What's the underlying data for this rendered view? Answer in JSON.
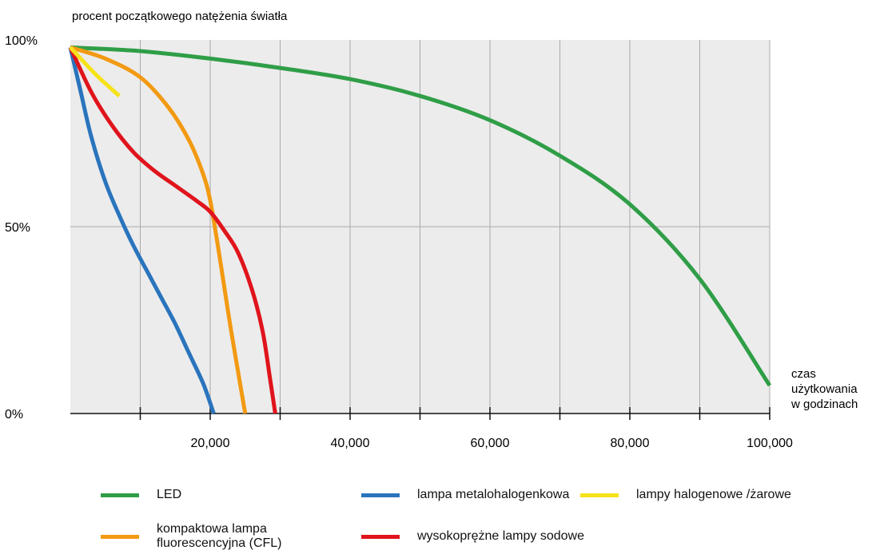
{
  "chart_data": {
    "type": "line",
    "title": "procent początkowego natężenia światła",
    "xlabel": [
      "czas",
      "użytkowania",
      "w godzinach"
    ],
    "ylabel": "",
    "xlim": [
      0,
      100000
    ],
    "ylim": [
      0,
      100
    ],
    "x_ticks": [
      20000,
      40000,
      60000,
      80000,
      100000
    ],
    "x_tick_labels": [
      "20,000",
      "40,000",
      "60,000",
      "80,000",
      "100,000"
    ],
    "x_grid": [
      10000,
      20000,
      30000,
      40000,
      50000,
      60000,
      70000,
      80000,
      90000,
      100000
    ],
    "y_ticks": [
      0,
      50,
      100
    ],
    "y_tick_labels": [
      "0%",
      "50%",
      "100%"
    ],
    "grid": true,
    "legend_position": "bottom",
    "series": [
      {
        "name": "LED",
        "color": "#2f9e47",
        "points": [
          [
            0,
            98
          ],
          [
            10000,
            97
          ],
          [
            20000,
            95
          ],
          [
            30000,
            92.5
          ],
          [
            40000,
            89.5
          ],
          [
            50000,
            85
          ],
          [
            60000,
            78.5
          ],
          [
            70000,
            69
          ],
          [
            80000,
            56
          ],
          [
            90000,
            36
          ],
          [
            100000,
            7.5
          ]
        ]
      },
      {
        "name": "kompaktowa lampa fluorescencyjna (CFL)",
        "color": "#f29a12",
        "points": [
          [
            0,
            98
          ],
          [
            5000,
            95
          ],
          [
            10000,
            90
          ],
          [
            14000,
            82
          ],
          [
            17000,
            73
          ],
          [
            19000,
            64
          ],
          [
            20000,
            57
          ],
          [
            21000,
            46
          ],
          [
            22000,
            34
          ],
          [
            23000,
            22
          ],
          [
            24000,
            11
          ],
          [
            25000,
            0
          ]
        ]
      },
      {
        "name": "lampa metalohalogenkowa",
        "color": "#2a74bd",
        "points": [
          [
            0,
            98
          ],
          [
            1500,
            86
          ],
          [
            3000,
            74
          ],
          [
            5000,
            62
          ],
          [
            7000,
            53
          ],
          [
            9000,
            45
          ],
          [
            11000,
            38
          ],
          [
            13000,
            31
          ],
          [
            15000,
            24
          ],
          [
            17000,
            16
          ],
          [
            19000,
            8
          ],
          [
            20500,
            0
          ]
        ]
      },
      {
        "name": "wysokoprężne lampy sodowe",
        "color": "#e0141c",
        "points": [
          [
            0,
            98
          ],
          [
            3000,
            86
          ],
          [
            6000,
            77
          ],
          [
            9000,
            70
          ],
          [
            12000,
            65
          ],
          [
            15000,
            61
          ],
          [
            18000,
            57
          ],
          [
            20000,
            54
          ],
          [
            22000,
            49
          ],
          [
            24000,
            43
          ],
          [
            26000,
            33
          ],
          [
            27500,
            22
          ],
          [
            28500,
            10
          ],
          [
            29300,
            0
          ]
        ]
      },
      {
        "name": "lampy halogenowe /żarowe",
        "color": "#f7e21a",
        "points": [
          [
            0,
            98
          ],
          [
            3500,
            91
          ],
          [
            7000,
            85
          ]
        ]
      }
    ],
    "legend_items": [
      {
        "label": "LED",
        "color": "#2f9e47"
      },
      {
        "label": "lampa metalohalogenkowa",
        "color": "#2a74bd"
      },
      {
        "label": "lampy halogenowe /żarowe",
        "color": "#f7e21a"
      },
      {
        "label": "kompaktowa lampa fluorescencyjna (CFL)",
        "color": "#f29a12"
      },
      {
        "label": "wysokoprężne lampy sodowe",
        "color": "#e0141c"
      }
    ]
  }
}
